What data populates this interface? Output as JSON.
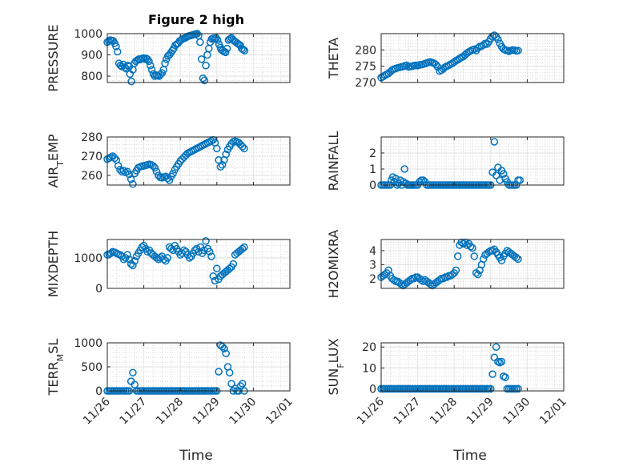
{
  "figure_title": "Figure 2 high",
  "marker_color": "#0072BD",
  "chart_data": [
    {
      "type": "scatter",
      "ylabel_main": "PRESSURE",
      "ylabel_sub": "",
      "ylim": [
        770,
        1000
      ],
      "yticks": [
        800,
        900,
        1000
      ],
      "ytick_labels": [
        "800",
        "900",
        "1000"
      ],
      "xlim": [
        0,
        5
      ],
      "x": [
        0.0,
        0.04,
        0.08,
        0.12,
        0.16,
        0.2,
        0.24,
        0.28,
        0.32,
        0.36,
        0.4,
        0.44,
        0.48,
        0.52,
        0.56,
        0.6,
        0.62,
        0.66,
        0.7,
        0.74,
        0.78,
        0.82,
        0.86,
        0.9,
        0.94,
        0.98,
        1.02,
        1.06,
        1.1,
        1.14,
        1.18,
        1.22,
        1.26,
        1.3,
        1.34,
        1.38,
        1.42,
        1.46,
        1.5,
        1.54,
        1.58,
        1.62,
        1.66,
        1.7,
        1.74,
        1.78,
        1.82,
        1.86,
        1.9,
        1.94,
        1.98,
        2.02,
        2.06,
        2.1,
        2.14,
        2.18,
        2.22,
        2.26,
        2.3,
        2.34,
        2.38,
        2.42,
        2.46,
        2.5,
        2.54,
        2.58,
        2.62,
        2.66,
        2.7,
        2.74,
        2.78,
        2.82,
        2.86,
        2.9,
        2.94,
        2.98,
        3.02,
        3.06,
        3.1,
        3.12,
        3.16,
        3.2,
        3.24,
        3.28,
        3.32,
        3.36,
        3.4,
        3.44,
        3.48,
        3.52,
        3.56,
        3.6,
        3.64,
        3.68,
        3.72,
        3.76
      ],
      "y": [
        960,
        965,
        970,
        968,
        966,
        955,
        940,
        915,
        860,
        850,
        845,
        855,
        840,
        835,
        850,
        845,
        810,
        775,
        830,
        860,
        870,
        875,
        880,
        878,
        882,
        885,
        880,
        884,
        880,
        870,
        850,
        830,
        810,
        800,
        805,
        802,
        800,
        808,
        815,
        830,
        860,
        880,
        895,
        900,
        910,
        920,
        930,
        945,
        950,
        955,
        965,
        970,
        975,
        978,
        980,
        985,
        988,
        990,
        992,
        994,
        996,
        998,
        1000,
        990,
        960,
        880,
        790,
        780,
        850,
        900,
        930,
        960,
        975,
        978,
        975,
        980,
        970,
        950,
        935,
        925,
        920,
        915,
        912,
        930,
        970,
        975,
        980,
        972,
        965,
        960,
        955,
        950,
        945,
        930,
        925,
        920
      ]
    },
    {
      "type": "scatter",
      "ylabel_main": "THETA",
      "ylabel_sub": "",
      "ylim": [
        270,
        285
      ],
      "yticks": [
        270,
        275,
        280
      ],
      "ytick_labels": [
        "270",
        "275",
        "280"
      ],
      "xlim": [
        0,
        5
      ],
      "x": [
        0.0,
        0.05,
        0.1,
        0.15,
        0.2,
        0.25,
        0.3,
        0.35,
        0.4,
        0.45,
        0.5,
        0.55,
        0.6,
        0.65,
        0.7,
        0.75,
        0.8,
        0.85,
        0.9,
        0.95,
        1.0,
        1.05,
        1.1,
        1.15,
        1.2,
        1.25,
        1.3,
        1.35,
        1.4,
        1.45,
        1.5,
        1.55,
        1.6,
        1.65,
        1.7,
        1.75,
        1.8,
        1.85,
        1.9,
        1.95,
        2.0,
        2.05,
        2.1,
        2.15,
        2.2,
        2.25,
        2.3,
        2.35,
        2.4,
        2.45,
        2.5,
        2.55,
        2.6,
        2.65,
        2.7,
        2.75,
        2.8,
        2.85,
        2.9,
        2.95,
        3.0,
        3.05,
        3.1,
        3.15,
        3.2,
        3.25,
        3.3,
        3.35,
        3.4,
        3.45,
        3.5,
        3.55,
        3.6,
        3.65,
        3.7,
        3.75
      ],
      "y": [
        271.5,
        271.8,
        272.2,
        272.5,
        272.8,
        273.3,
        273.8,
        274.1,
        274.3,
        274.5,
        274.6,
        274.8,
        274.9,
        275.1,
        275.3,
        274.8,
        274.9,
        275.0,
        275.2,
        275.3,
        275.2,
        275.4,
        275.5,
        275.6,
        275.8,
        276.0,
        276.2,
        276.3,
        276.1,
        275.9,
        275.5,
        274.8,
        273.5,
        273.8,
        274.2,
        274.7,
        275.0,
        275.3,
        275.6,
        275.9,
        276.3,
        276.7,
        277.0,
        277.4,
        277.7,
        278.0,
        278.5,
        279.0,
        279.4,
        279.7,
        280.0,
        280.2,
        279.8,
        280.6,
        281.0,
        281.2,
        281.5,
        282.0,
        281.8,
        282.5,
        283.5,
        284.2,
        284.5,
        284.0,
        283.2,
        282.0,
        281.0,
        280.3,
        280.0,
        279.8,
        279.6,
        279.8,
        280.0,
        279.9,
        279.7,
        279.8
      ]
    },
    {
      "type": "scatter",
      "ylabel_main": "AIR",
      "ylabel_sub": "T",
      "ylabel_tail": "EMP",
      "ylim": [
        255,
        280
      ],
      "yticks": [
        260,
        270,
        280
      ],
      "ytick_labels": [
        "260",
        "270",
        "280"
      ],
      "xlim": [
        0,
        5
      ],
      "x": [
        0.0,
        0.05,
        0.1,
        0.15,
        0.2,
        0.25,
        0.3,
        0.35,
        0.4,
        0.45,
        0.5,
        0.55,
        0.6,
        0.65,
        0.7,
        0.75,
        0.8,
        0.85,
        0.9,
        0.95,
        1.0,
        1.05,
        1.1,
        1.15,
        1.2,
        1.25,
        1.3,
        1.35,
        1.4,
        1.45,
        1.5,
        1.55,
        1.6,
        1.65,
        1.7,
        1.75,
        1.8,
        1.85,
        1.9,
        1.95,
        2.0,
        2.05,
        2.1,
        2.15,
        2.2,
        2.25,
        2.3,
        2.35,
        2.4,
        2.45,
        2.5,
        2.55,
        2.6,
        2.65,
        2.7,
        2.75,
        2.8,
        2.85,
        2.9,
        2.95,
        3.0,
        3.05,
        3.1,
        3.15,
        3.2,
        3.25,
        3.3,
        3.35,
        3.4,
        3.45,
        3.5,
        3.55,
        3.6,
        3.65,
        3.7,
        3.75
      ],
      "y": [
        268.5,
        269.0,
        269.5,
        270.0,
        269.0,
        268.0,
        265.0,
        263.0,
        262.0,
        262.5,
        261.5,
        262.0,
        260.5,
        258.0,
        255.5,
        261.0,
        262.5,
        264.0,
        264.5,
        264.8,
        265.0,
        265.2,
        265.5,
        265.8,
        265.5,
        265.0,
        264.0,
        262.0,
        260.0,
        259.0,
        258.8,
        259.2,
        259.5,
        258.5,
        257.5,
        259.5,
        261.0,
        263.0,
        264.5,
        266.0,
        267.5,
        268.5,
        269.5,
        270.5,
        271.5,
        272.0,
        272.5,
        273.0,
        273.5,
        274.0,
        274.5,
        275.0,
        275.5,
        276.0,
        276.5,
        277.0,
        277.5,
        278.0,
        278.5,
        277.0,
        274.0,
        268.0,
        264.5,
        265.5,
        268.0,
        271.0,
        273.5,
        275.0,
        276.5,
        277.5,
        277.8,
        277.5,
        277.0,
        276.0,
        275.0,
        274.0
      ]
    },
    {
      "type": "scatter",
      "ylabel_main": "RAINFALL",
      "ylabel_sub": "",
      "ylim": [
        0,
        3
      ],
      "yticks": [
        0,
        1,
        2
      ],
      "ytick_labels": [
        "0",
        "1",
        "2"
      ],
      "xlim": [
        0,
        5
      ],
      "x": [
        0.0,
        0.05,
        0.1,
        0.15,
        0.2,
        0.25,
        0.28,
        0.32,
        0.36,
        0.4,
        0.44,
        0.48,
        0.52,
        0.56,
        0.6,
        0.64,
        0.68,
        0.72,
        0.76,
        0.8,
        0.85,
        0.9,
        0.95,
        1.0,
        1.05,
        1.1,
        1.15,
        1.2,
        1.25,
        1.3,
        1.35,
        1.4,
        1.45,
        1.5,
        1.55,
        1.6,
        1.65,
        1.7,
        1.75,
        1.8,
        1.85,
        1.9,
        1.95,
        2.0,
        2.05,
        2.1,
        2.15,
        2.2,
        2.25,
        2.3,
        2.35,
        2.4,
        2.45,
        2.5,
        2.55,
        2.6,
        2.65,
        2.7,
        2.75,
        2.8,
        2.85,
        2.9,
        2.95,
        3.0,
        3.05,
        3.1,
        3.15,
        3.2,
        3.25,
        3.3,
        3.35,
        3.4,
        3.45,
        3.5,
        3.55,
        3.6,
        3.65,
        3.7,
        3.75,
        3.8
      ],
      "y": [
        0,
        0,
        0,
        0,
        0,
        0,
        0.3,
        0.5,
        0.2,
        0.4,
        0,
        0.1,
        0.3,
        0,
        0.2,
        1.0,
        0.1,
        0,
        0,
        0,
        0,
        0,
        0,
        0,
        0.2,
        0.3,
        0.3,
        0.2,
        0,
        0,
        0,
        0,
        0,
        0,
        0,
        0,
        0,
        0,
        0,
        0,
        0,
        0,
        0,
        0,
        0,
        0,
        0,
        0,
        0,
        0,
        0,
        0,
        0,
        0,
        0,
        0,
        0,
        0,
        0,
        0,
        0,
        0,
        0,
        0,
        0.8,
        2.7,
        0.6,
        1.1,
        0.3,
        0.9,
        0.7,
        0.4,
        0.2,
        0,
        0,
        0,
        0,
        0,
        0.3,
        0.3
      ]
    },
    {
      "type": "scatter",
      "ylabel_main": "MIXDEPTH",
      "ylabel_sub": "",
      "ylim": [
        0,
        1600
      ],
      "yticks": [
        0,
        1000
      ],
      "ytick_labels": [
        "0",
        "1000"
      ],
      "xlim": [
        0,
        5
      ],
      "x": [
        0.0,
        0.05,
        0.1,
        0.15,
        0.2,
        0.25,
        0.3,
        0.35,
        0.4,
        0.45,
        0.5,
        0.55,
        0.6,
        0.65,
        0.7,
        0.75,
        0.8,
        0.85,
        0.9,
        0.95,
        1.0,
        1.05,
        1.1,
        1.15,
        1.2,
        1.25,
        1.3,
        1.35,
        1.4,
        1.45,
        1.5,
        1.55,
        1.6,
        1.65,
        1.7,
        1.75,
        1.8,
        1.85,
        1.9,
        1.95,
        2.0,
        2.05,
        2.1,
        2.15,
        2.2,
        2.25,
        2.3,
        2.35,
        2.4,
        2.45,
        2.5,
        2.55,
        2.6,
        2.65,
        2.7,
        2.75,
        2.8,
        2.85,
        2.9,
        2.95,
        3.0,
        3.05,
        3.1,
        3.15,
        3.2,
        3.25,
        3.3,
        3.35,
        3.4,
        3.45,
        3.5,
        3.55,
        3.6,
        3.65,
        3.7,
        3.75
      ],
      "y": [
        1100,
        1120,
        1150,
        1200,
        1180,
        1150,
        1120,
        1100,
        1050,
        950,
        1000,
        1100,
        950,
        800,
        750,
        900,
        1050,
        1150,
        1250,
        1350,
        1400,
        1300,
        1200,
        1250,
        1150,
        1100,
        1050,
        1000,
        950,
        1000,
        1050,
        950,
        900,
        1000,
        1350,
        1300,
        1250,
        1400,
        1300,
        1200,
        1100,
        1150,
        1250,
        1200,
        1100,
        1000,
        1050,
        1150,
        1250,
        1300,
        1200,
        1350,
        1150,
        1250,
        1550,
        1300,
        1200,
        1050,
        400,
        250,
        650,
        300,
        400,
        450,
        500,
        550,
        600,
        650,
        700,
        800,
        1100,
        1150,
        1200,
        1250,
        1300,
        1350
      ]
    },
    {
      "type": "scatter",
      "ylabel_main": "H2OMIXRA",
      "ylabel_sub": "",
      "ylim": [
        1.3,
        4.8
      ],
      "yticks": [
        2,
        3,
        4
      ],
      "ytick_labels": [
        "2",
        "3",
        "4"
      ],
      "xlim": [
        0,
        5
      ],
      "x": [
        0.0,
        0.05,
        0.1,
        0.15,
        0.2,
        0.25,
        0.3,
        0.35,
        0.4,
        0.45,
        0.5,
        0.55,
        0.6,
        0.65,
        0.7,
        0.75,
        0.8,
        0.85,
        0.9,
        0.95,
        1.0,
        1.05,
        1.1,
        1.15,
        1.2,
        1.25,
        1.3,
        1.35,
        1.4,
        1.45,
        1.5,
        1.55,
        1.6,
        1.65,
        1.7,
        1.75,
        1.8,
        1.85,
        1.9,
        1.95,
        2.0,
        2.05,
        2.1,
        2.15,
        2.2,
        2.25,
        2.3,
        2.35,
        2.4,
        2.45,
        2.5,
        2.55,
        2.6,
        2.65,
        2.7,
        2.75,
        2.8,
        2.85,
        2.9,
        2.95,
        3.0,
        3.05,
        3.1,
        3.15,
        3.2,
        3.25,
        3.3,
        3.35,
        3.4,
        3.45,
        3.5,
        3.55,
        3.6,
        3.65,
        3.7,
        3.75
      ],
      "y": [
        2.1,
        2.2,
        2.3,
        2.4,
        2.6,
        2.2,
        2.0,
        1.9,
        1.8,
        1.8,
        1.7,
        1.6,
        1.5,
        1.6,
        1.7,
        1.8,
        1.9,
        2.0,
        2.0,
        2.1,
        2.1,
        2.0,
        1.9,
        1.8,
        1.9,
        1.8,
        1.7,
        1.6,
        1.5,
        1.6,
        1.7,
        1.8,
        1.9,
        2.0,
        2.0,
        2.1,
        2.1,
        2.2,
        2.2,
        2.3,
        2.4,
        2.6,
        3.6,
        4.4,
        4.6,
        4.5,
        4.6,
        4.4,
        4.5,
        4.3,
        4.2,
        3.6,
        2.4,
        2.3,
        2.6,
        3.0,
        3.4,
        3.7,
        3.8,
        3.9,
        4.0,
        4.0,
        4.1,
        3.9,
        3.7,
        3.5,
        3.3,
        3.6,
        3.8,
        4.0,
        3.9,
        3.8,
        3.7,
        3.6,
        3.5,
        3.4
      ]
    },
    {
      "type": "scatter",
      "ylabel_main": "TERR",
      "ylabel_sub": "M",
      "ylabel_tail": "SL",
      "ylim": [
        0,
        1000
      ],
      "yticks": [
        0,
        500,
        1000
      ],
      "ytick_labels": [
        "0",
        "500",
        "1000"
      ],
      "xlim": [
        0,
        5
      ],
      "x": [
        0.0,
        0.05,
        0.1,
        0.15,
        0.2,
        0.25,
        0.3,
        0.35,
        0.4,
        0.45,
        0.5,
        0.55,
        0.6,
        0.65,
        0.7,
        0.75,
        0.8,
        0.85,
        0.9,
        0.95,
        1.0,
        1.05,
        1.1,
        1.15,
        1.2,
        1.25,
        1.3,
        1.35,
        1.4,
        1.45,
        1.5,
        1.55,
        1.6,
        1.65,
        1.7,
        1.75,
        1.8,
        1.85,
        1.9,
        1.95,
        2.0,
        2.05,
        2.1,
        2.15,
        2.2,
        2.25,
        2.3,
        2.35,
        2.4,
        2.45,
        2.5,
        2.55,
        2.6,
        2.65,
        2.7,
        2.75,
        2.8,
        2.85,
        2.9,
        2.95,
        3.0,
        3.05,
        3.1,
        3.15,
        3.2,
        3.25,
        3.3,
        3.35,
        3.4,
        3.45,
        3.5,
        3.55,
        3.6,
        3.65,
        3.7,
        3.75
      ],
      "y": [
        0,
        0,
        0,
        0,
        0,
        0,
        0,
        0,
        0,
        0,
        0,
        0,
        0,
        200,
        380,
        130,
        0,
        0,
        0,
        0,
        0,
        0,
        0,
        0,
        0,
        0,
        0,
        0,
        0,
        0,
        0,
        0,
        0,
        0,
        0,
        0,
        0,
        0,
        0,
        0,
        0,
        0,
        0,
        0,
        0,
        0,
        0,
        0,
        0,
        0,
        0,
        0,
        0,
        0,
        0,
        0,
        0,
        0,
        0,
        0,
        0,
        400,
        950,
        920,
        880,
        780,
        500,
        380,
        150,
        0,
        50,
        0,
        0,
        100,
        150,
        0
      ]
    },
    {
      "type": "scatter",
      "ylabel_main": "SUN",
      "ylabel_sub": "F",
      "ylabel_tail": "LUX",
      "ylim": [
        -1,
        22
      ],
      "yticks": [
        0,
        10,
        20
      ],
      "ytick_labels": [
        "0",
        "10",
        "20"
      ],
      "xlim": [
        0,
        5
      ],
      "x": [
        0.0,
        0.05,
        0.1,
        0.15,
        0.2,
        0.25,
        0.3,
        0.35,
        0.4,
        0.45,
        0.5,
        0.55,
        0.6,
        0.65,
        0.7,
        0.75,
        0.8,
        0.85,
        0.9,
        0.95,
        1.0,
        1.05,
        1.1,
        1.15,
        1.2,
        1.25,
        1.3,
        1.35,
        1.4,
        1.45,
        1.5,
        1.55,
        1.6,
        1.65,
        1.7,
        1.75,
        1.8,
        1.85,
        1.9,
        1.95,
        2.0,
        2.05,
        2.1,
        2.15,
        2.2,
        2.25,
        2.3,
        2.35,
        2.4,
        2.45,
        2.5,
        2.55,
        2.6,
        2.65,
        2.7,
        2.75,
        2.8,
        2.85,
        2.9,
        2.95,
        3.0,
        3.05,
        3.1,
        3.15,
        3.2,
        3.25,
        3.3,
        3.35,
        3.4,
        3.45,
        3.5,
        3.55,
        3.6,
        3.65,
        3.7,
        3.75
      ],
      "y": [
        0,
        0,
        0,
        0,
        0,
        0,
        0,
        0,
        0,
        0,
        0,
        0,
        0,
        0,
        0,
        0,
        0,
        0,
        0,
        0,
        0,
        0,
        0,
        0,
        0,
        0,
        0,
        0,
        0,
        0,
        0,
        0,
        0,
        0,
        0,
        0,
        0,
        0,
        0,
        0,
        0,
        0,
        0,
        0,
        0,
        0,
        0,
        0,
        0,
        0,
        0,
        0,
        0,
        0,
        0,
        0,
        0,
        0,
        0,
        0,
        0,
        7,
        15,
        20,
        13,
        12.5,
        13,
        6,
        5.5,
        0,
        0,
        0,
        0,
        0,
        0,
        0
      ]
    }
  ],
  "x_tick_labels": [
    "11/26",
    "11/27",
    "11/28",
    "11/29",
    "11/30",
    "12/01"
  ],
  "xlabel": "Time"
}
